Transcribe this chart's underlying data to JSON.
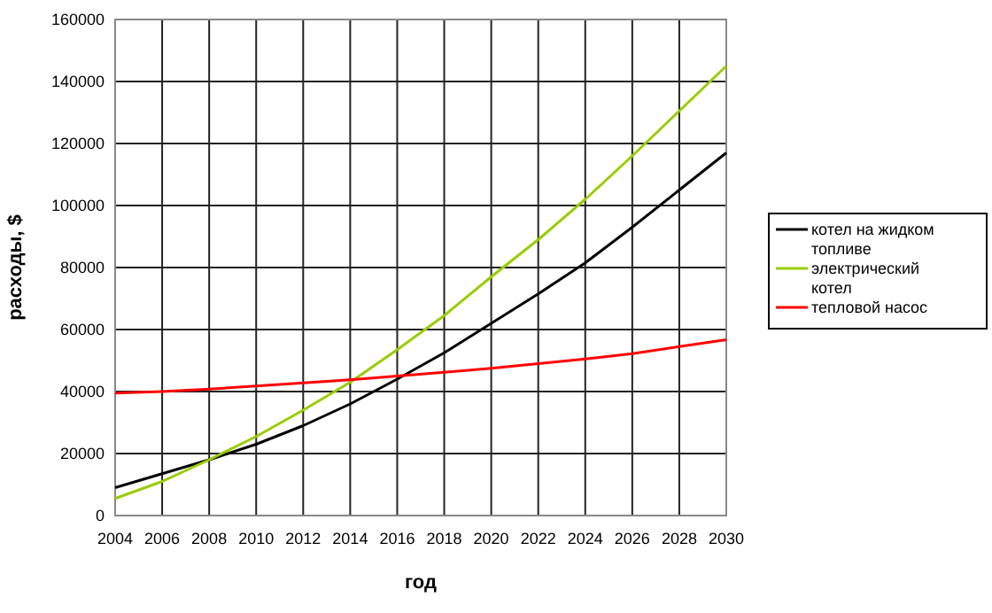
{
  "chart_data": {
    "type": "line",
    "xlabel": "год",
    "ylabel": "расходы, $",
    "x": [
      2004,
      2006,
      2008,
      2010,
      2012,
      2014,
      2016,
      2018,
      2020,
      2022,
      2024,
      2026,
      2028,
      2030
    ],
    "series": [
      {
        "name": "котел на жидком топливе",
        "color": "#000000",
        "values": [
          9000,
          13500,
          18000,
          23000,
          29000,
          36000,
          44000,
          52500,
          62000,
          71500,
          81500,
          93000,
          105000,
          117000
        ]
      },
      {
        "name": "электрический котел",
        "color": "#99cc00",
        "values": [
          5500,
          11000,
          18000,
          25500,
          34000,
          43000,
          53500,
          64500,
          77000,
          89000,
          102000,
          116000,
          130500,
          145000
        ]
      },
      {
        "name": "тепловой насос",
        "color": "#ff0000",
        "values": [
          39500,
          40000,
          40800,
          41800,
          42800,
          43800,
          45000,
          46200,
          47500,
          49000,
          50500,
          52200,
          54500,
          56700
        ]
      }
    ],
    "xlim": [
      2004,
      2030
    ],
    "xticks": [
      2004,
      2006,
      2008,
      2010,
      2012,
      2014,
      2016,
      2018,
      2020,
      2022,
      2024,
      2026,
      2028,
      2030
    ],
    "ylim": [
      0,
      160000
    ],
    "yticks": [
      0,
      20000,
      40000,
      60000,
      80000,
      100000,
      120000,
      140000,
      160000
    ],
    "grid": true,
    "legend": "right",
    "marker": "none",
    "line_style": "solid"
  }
}
